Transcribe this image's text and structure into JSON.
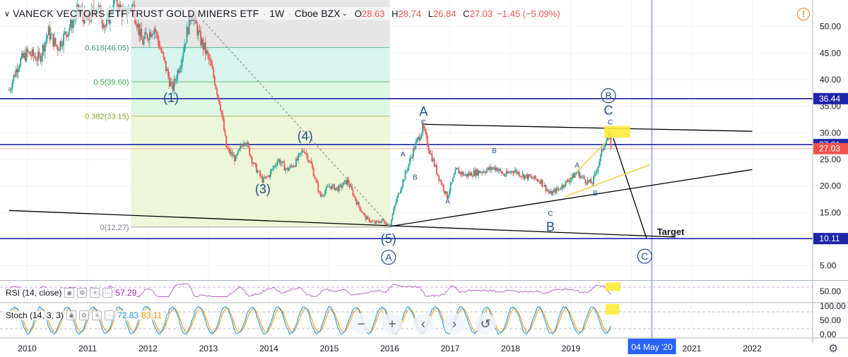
{
  "header": {
    "symbol": "VANECK VECTORS ETF TRUST GOLD MINERS ETF",
    "interval": "1W",
    "exchange": "Cboe BZX",
    "open_label": "O",
    "open": "28.63",
    "high_label": "H",
    "high": "28.74",
    "low_label": "L",
    "low": "26.84",
    "close_label": "C",
    "close": "27.03",
    "change": "−1.45 (−5.09%)"
  },
  "indicators": {
    "rsi": {
      "label": "RSI (14, close)",
      "value": "57.29"
    },
    "stoch": {
      "label": "Stoch (14, 3, 3)",
      "k_value": "72.83",
      "d_value": "83.11"
    }
  },
  "chart_data": {
    "type": "candlestick",
    "x_axis": {
      "years": [
        2010,
        2011,
        2012,
        2013,
        2014,
        2015,
        2016,
        2017,
        2018,
        2019,
        2020,
        2021,
        2022
      ],
      "tick_labels": [
        "2010",
        "2011",
        "2012",
        "2013",
        "2014",
        "2015",
        "2016",
        "2017",
        "2018",
        "2019",
        "2",
        "2021",
        "2022"
      ],
      "crosshair_label": "04 May '20",
      "crosshair_x": 2020.34
    },
    "y_axis": {
      "range": [
        2.3,
        55
      ],
      "ticks": [
        5,
        10,
        15,
        20,
        25,
        30,
        35,
        40,
        45,
        50
      ],
      "tick_labels": [
        "5.00",
        "10.00",
        "15.00",
        "20.00",
        "25.00",
        "30.00",
        "35.00",
        "40.00",
        "45.00",
        "50.00"
      ]
    },
    "price_path": [
      [
        2009.7,
        38
      ],
      [
        2009.85,
        43
      ],
      [
        2010.0,
        45
      ],
      [
        2010.2,
        44
      ],
      [
        2010.35,
        49
      ],
      [
        2010.5,
        46
      ],
      [
        2010.7,
        50
      ],
      [
        2010.85,
        53
      ],
      [
        2011.0,
        51
      ],
      [
        2011.15,
        54
      ],
      [
        2011.3,
        50
      ],
      [
        2011.45,
        55
      ],
      [
        2011.6,
        52
      ],
      [
        2011.75,
        54
      ],
      [
        2011.9,
        47
      ],
      [
        2012.1,
        50
      ],
      [
        2012.25,
        44
      ],
      [
        2012.4,
        38
      ],
      [
        2012.55,
        44
      ],
      [
        2012.72,
        53
      ],
      [
        2012.85,
        48
      ],
      [
        2013.0,
        44
      ],
      [
        2013.1,
        40
      ],
      [
        2013.2,
        35
      ],
      [
        2013.3,
        27
      ],
      [
        2013.45,
        25
      ],
      [
        2013.6,
        29
      ],
      [
        2013.75,
        24
      ],
      [
        2013.9,
        21
      ],
      [
        2014.0,
        22
      ],
      [
        2014.15,
        25
      ],
      [
        2014.3,
        23
      ],
      [
        2014.45,
        24.5
      ],
      [
        2014.58,
        27
      ],
      [
        2014.7,
        24
      ],
      [
        2014.85,
        18
      ],
      [
        2015.0,
        20
      ],
      [
        2015.15,
        19.5
      ],
      [
        2015.3,
        21
      ],
      [
        2015.45,
        17
      ],
      [
        2015.6,
        14
      ],
      [
        2015.75,
        13
      ],
      [
        2015.88,
        13.5
      ],
      [
        2016.0,
        12.5
      ],
      [
        2016.1,
        17
      ],
      [
        2016.25,
        22
      ],
      [
        2016.4,
        27
      ],
      [
        2016.55,
        31
      ],
      [
        2016.65,
        27
      ],
      [
        2016.8,
        22
      ],
      [
        2016.95,
        18
      ],
      [
        2017.1,
        23
      ],
      [
        2017.25,
        22
      ],
      [
        2017.4,
        22.5
      ],
      [
        2017.6,
        23
      ],
      [
        2017.75,
        23.5
      ],
      [
        2017.9,
        22
      ],
      [
        2018.05,
        23
      ],
      [
        2018.2,
        22
      ],
      [
        2018.35,
        21.5
      ],
      [
        2018.5,
        21
      ],
      [
        2018.65,
        18.5
      ],
      [
        2018.8,
        19.5
      ],
      [
        2018.95,
        21
      ],
      [
        2019.1,
        22.5
      ],
      [
        2019.25,
        21
      ],
      [
        2019.35,
        20.5
      ],
      [
        2019.45,
        24
      ],
      [
        2019.55,
        28
      ],
      [
        2019.62,
        29.5
      ],
      [
        2019.68,
        27
      ]
    ],
    "horizontal_levels": [
      {
        "value": 36.44,
        "label": "36.44",
        "color": "#1e25a8"
      },
      {
        "value": 27.81,
        "label": "27.81",
        "color": "#1e25a8"
      },
      {
        "value": 27.03,
        "label": "27.03",
        "color": "#ef5350"
      },
      {
        "value": 10.11,
        "label": "10.11",
        "color": "#1e25a8"
      }
    ],
    "fibonacci": {
      "levels": [
        {
          "ratio": 0.618,
          "value": 46.05,
          "label": "0.618(46.05)"
        },
        {
          "ratio": 0.5,
          "value": 39.6,
          "label": "0.5(39.60)"
        },
        {
          "ratio": 0.382,
          "value": 33.15,
          "label": "0.382(33.15)"
        },
        {
          "ratio": 0,
          "value": 12.27,
          "label": "0(12.27)"
        }
      ],
      "x_start": 2011.72,
      "x_end": 2016.0
    },
    "wave_labels": [
      {
        "text": "(1)",
        "x": 2012.38,
        "y": 35.8
      },
      {
        "text": "(3)",
        "x": 2013.9,
        "y": 18.6
      },
      {
        "text": "(4)",
        "x": 2014.6,
        "y": 28.6
      },
      {
        "text": "(5)",
        "x": 2015.98,
        "y": 9.3
      },
      {
        "text": "A",
        "x": 2015.98,
        "y": 5.8,
        "circled": true
      },
      {
        "text": "A",
        "x": 2016.56,
        "y": 33.2
      },
      {
        "text": "B",
        "x": 2018.66,
        "y": 11.5
      },
      {
        "text": "B",
        "x": 2019.62,
        "y": 36.2,
        "circled": true
      },
      {
        "text": "C",
        "x": 2019.62,
        "y": 33.4
      },
      {
        "text": "C",
        "x": 2020.22,
        "y": 6.0,
        "circled": true
      },
      {
        "text": "Target",
        "x": 2020.65,
        "y": 10.8
      }
    ],
    "small_labels": [
      {
        "text": "A",
        "x": 2016.22,
        "y": 25.5
      },
      {
        "text": "B",
        "x": 2016.42,
        "y": 21.2
      },
      {
        "text": "C",
        "x": 2016.56,
        "y": 31.6
      },
      {
        "text": "A",
        "x": 2016.96,
        "y": 16.7
      },
      {
        "text": "B",
        "x": 2017.73,
        "y": 26.2
      },
      {
        "text": "C",
        "x": 2018.66,
        "y": 14.4
      },
      {
        "text": "A",
        "x": 2019.1,
        "y": 23.5
      },
      {
        "text": "B",
        "x": 2019.4,
        "y": 18.2
      },
      {
        "text": "C",
        "x": 2019.65,
        "y": 31.6
      }
    ],
    "highlight_boxes": [
      {
        "x1": 2019.55,
        "x2": 2019.98,
        "y1": 29.1,
        "y2": 31.3
      }
    ],
    "trend_lines": [
      {
        "name": "long-downtrend",
        "color": "#000000",
        "points": [
          [
            2009.7,
            15.4
          ],
          [
            2020.73,
            10.4
          ]
        ]
      },
      {
        "name": "upper-triangle",
        "color": "#000000",
        "points": [
          [
            2016.58,
            31.6
          ],
          [
            2022.0,
            30.3
          ]
        ]
      },
      {
        "name": "lower-triangle",
        "color": "#000000",
        "points": [
          [
            2016.0,
            12.4
          ],
          [
            2022.0,
            23.1
          ]
        ]
      },
      {
        "name": "projection",
        "color": "#000000",
        "points": [
          [
            2019.7,
            29.0
          ],
          [
            2020.25,
            10.2
          ]
        ]
      },
      {
        "name": "wedge-upper",
        "color": "#f5d45a",
        "points": [
          [
            2018.78,
            19.0
          ],
          [
            2019.7,
            29.7
          ]
        ]
      },
      {
        "name": "wedge-lower",
        "color": "#f5d45a",
        "points": [
          [
            2018.9,
            18.0
          ],
          [
            2020.3,
            24.0
          ]
        ]
      },
      {
        "name": "fib-diagonal",
        "color": "#9598a1",
        "dashed": true,
        "points": [
          [
            2012.72,
            53.5
          ],
          [
            2016.0,
            12.5
          ]
        ]
      }
    ],
    "rsi": {
      "range": [
        0,
        100
      ],
      "tick_labels": [
        "50.00"
      ],
      "ticks": [
        50
      ],
      "current": 57.29,
      "overbought": 70,
      "oversold": 30
    },
    "stoch": {
      "range": [
        -10,
        110
      ],
      "tick_labels": [
        "0.00",
        "50.00",
        "100.00"
      ],
      "ticks": [
        0,
        50,
        100
      ],
      "k_current": 72.83,
      "d_current": 83.11
    },
    "colors": {
      "up": "#26a69a",
      "down": "#ef5350",
      "rsi": "#9c27b0",
      "stoch_k": "#2196f3",
      "stoch_d": "#ff9800",
      "level": "#1e25a8",
      "highlight": "#ffeb3b"
    }
  },
  "controls": {
    "buttons": [
      "−",
      "+",
      "‹",
      "›",
      "↺"
    ]
  },
  "alert_icon": "!",
  "settings_icon": "gear-icon"
}
